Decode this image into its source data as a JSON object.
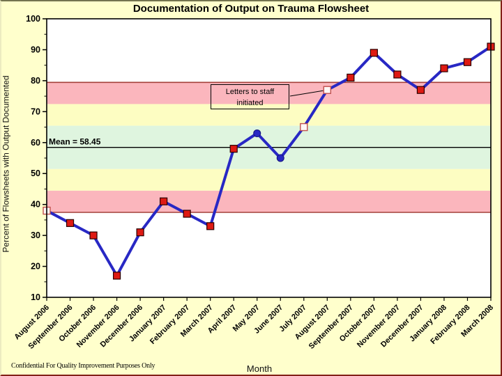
{
  "header": {
    "title": "Documentation of Output on Trauma Flowsheet"
  },
  "footer": {
    "confidential_note": "Confidential For Quality Improvement Purposes Only"
  },
  "chart_data": {
    "type": "line",
    "title": "Documentation of Output on Trauma Flowsheet",
    "xlabel": "Month",
    "ylabel": "Percent of Flowsheets with Output Documented",
    "ylim": [
      10,
      100
    ],
    "ytick_step": 10,
    "grid": "off",
    "legend": "none",
    "categories": [
      "August 2006",
      "September 2006",
      "October 2006",
      "November 2006",
      "December 2006",
      "January 2007",
      "February 2007",
      "March 2007",
      "April 2007",
      "May 2007",
      "June 2007",
      "July 2007",
      "August 2007",
      "September 2007",
      "October 2007",
      "November 2007",
      "December 2007",
      "January 2008",
      "February 2008",
      "March 2008"
    ],
    "series": [
      {
        "name": "Percent of Flowsheets with Output Documented",
        "values": [
          38,
          34,
          30,
          17,
          31,
          41,
          37,
          33,
          58,
          63,
          55,
          65,
          77,
          81,
          89,
          82,
          77,
          84,
          86,
          91
        ],
        "marker_types": [
          "open-square",
          "square",
          "square",
          "square",
          "square",
          "square",
          "square",
          "square",
          "square",
          "circle",
          "circle",
          "open-square",
          "open-square",
          "square",
          "square",
          "square",
          "square",
          "square",
          "square",
          "square"
        ]
      }
    ],
    "mean": 58.45,
    "mean_label": "Mean = 58.45",
    "control_limits": {
      "ucl": 79.45,
      "lcl": 37.45
    },
    "zones": [
      {
        "from": 72.45,
        "to": 79.45,
        "color": "pink"
      },
      {
        "from": 65.45,
        "to": 72.45,
        "color": "yellow"
      },
      {
        "from": 51.45,
        "to": 65.45,
        "color": "green"
      },
      {
        "from": 44.45,
        "to": 51.45,
        "color": "yellow"
      },
      {
        "from": 37.45,
        "to": 44.45,
        "color": "pink"
      }
    ],
    "annotation": {
      "line1": "Letters to staff",
      "line2": "initiated",
      "target_month": "August 2007",
      "target_value": 77
    }
  },
  "colors": {
    "page_bg": "#FFFFCC",
    "plot_bg": "#FFFFFF",
    "zone_pink": "#FBB6BD",
    "zone_yellow": "#FDFDC2",
    "zone_green": "#DFF5DF",
    "line_blue": "#2828C4",
    "marker_red_fill": "#DE1A13",
    "marker_red_border": "#2A0000",
    "marker_open_fill": "#FFF7F6",
    "marker_open_border": "#C0504D",
    "control_limit_line": "#A4403A",
    "mean_line": "#000000",
    "axis": "#000000"
  }
}
